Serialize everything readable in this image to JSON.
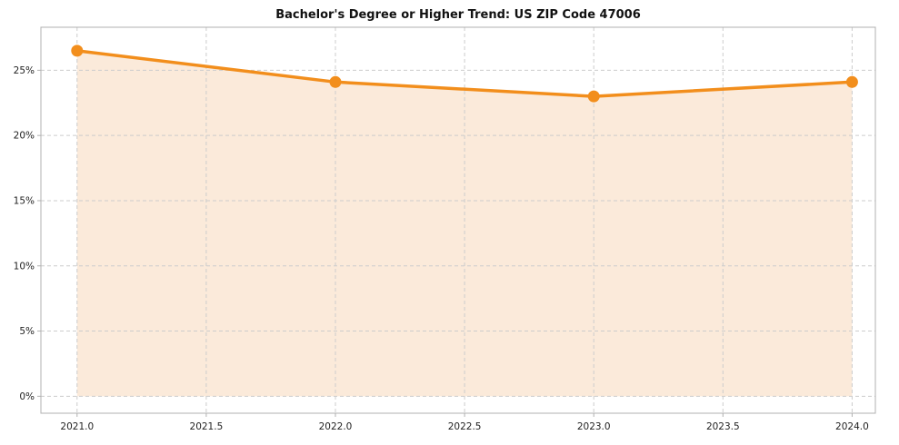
{
  "figure": {
    "background": "#ffffff"
  },
  "chart_data": {
    "type": "line",
    "title": "Bachelor's Degree or Higher Trend: US ZIP Code 47006",
    "x": [
      2021,
      2022,
      2023,
      2024
    ],
    "series": [
      {
        "name": "Bachelor's Degree or Higher %",
        "values": [
          26.5,
          24.1,
          23.0,
          24.1
        ]
      }
    ],
    "area_fill": true,
    "area_baseline": 0,
    "xlim": [
      2020.86,
      2024.09
    ],
    "ylim": [
      -1.3,
      28.3
    ],
    "xticks": {
      "values": [
        2021.0,
        2021.5,
        2022.0,
        2022.5,
        2023.0,
        2023.5,
        2024.0
      ],
      "labels": [
        "2021.0",
        "2021.5",
        "2022.0",
        "2022.5",
        "2023.0",
        "2023.5",
        "2024.0"
      ]
    },
    "yticks": {
      "values": [
        0,
        5,
        10,
        15,
        20,
        25
      ],
      "labels": [
        "0%",
        "5%",
        "10%",
        "15%",
        "20%",
        "25%"
      ]
    },
    "grid": true,
    "legend": "none",
    "colors": {
      "line": "#f28e1c",
      "marker": "#f28e1c",
      "area": "#fbeada",
      "grid": "#cccccc",
      "spine": "#b0b0b0",
      "tick_text": "#222222"
    }
  }
}
